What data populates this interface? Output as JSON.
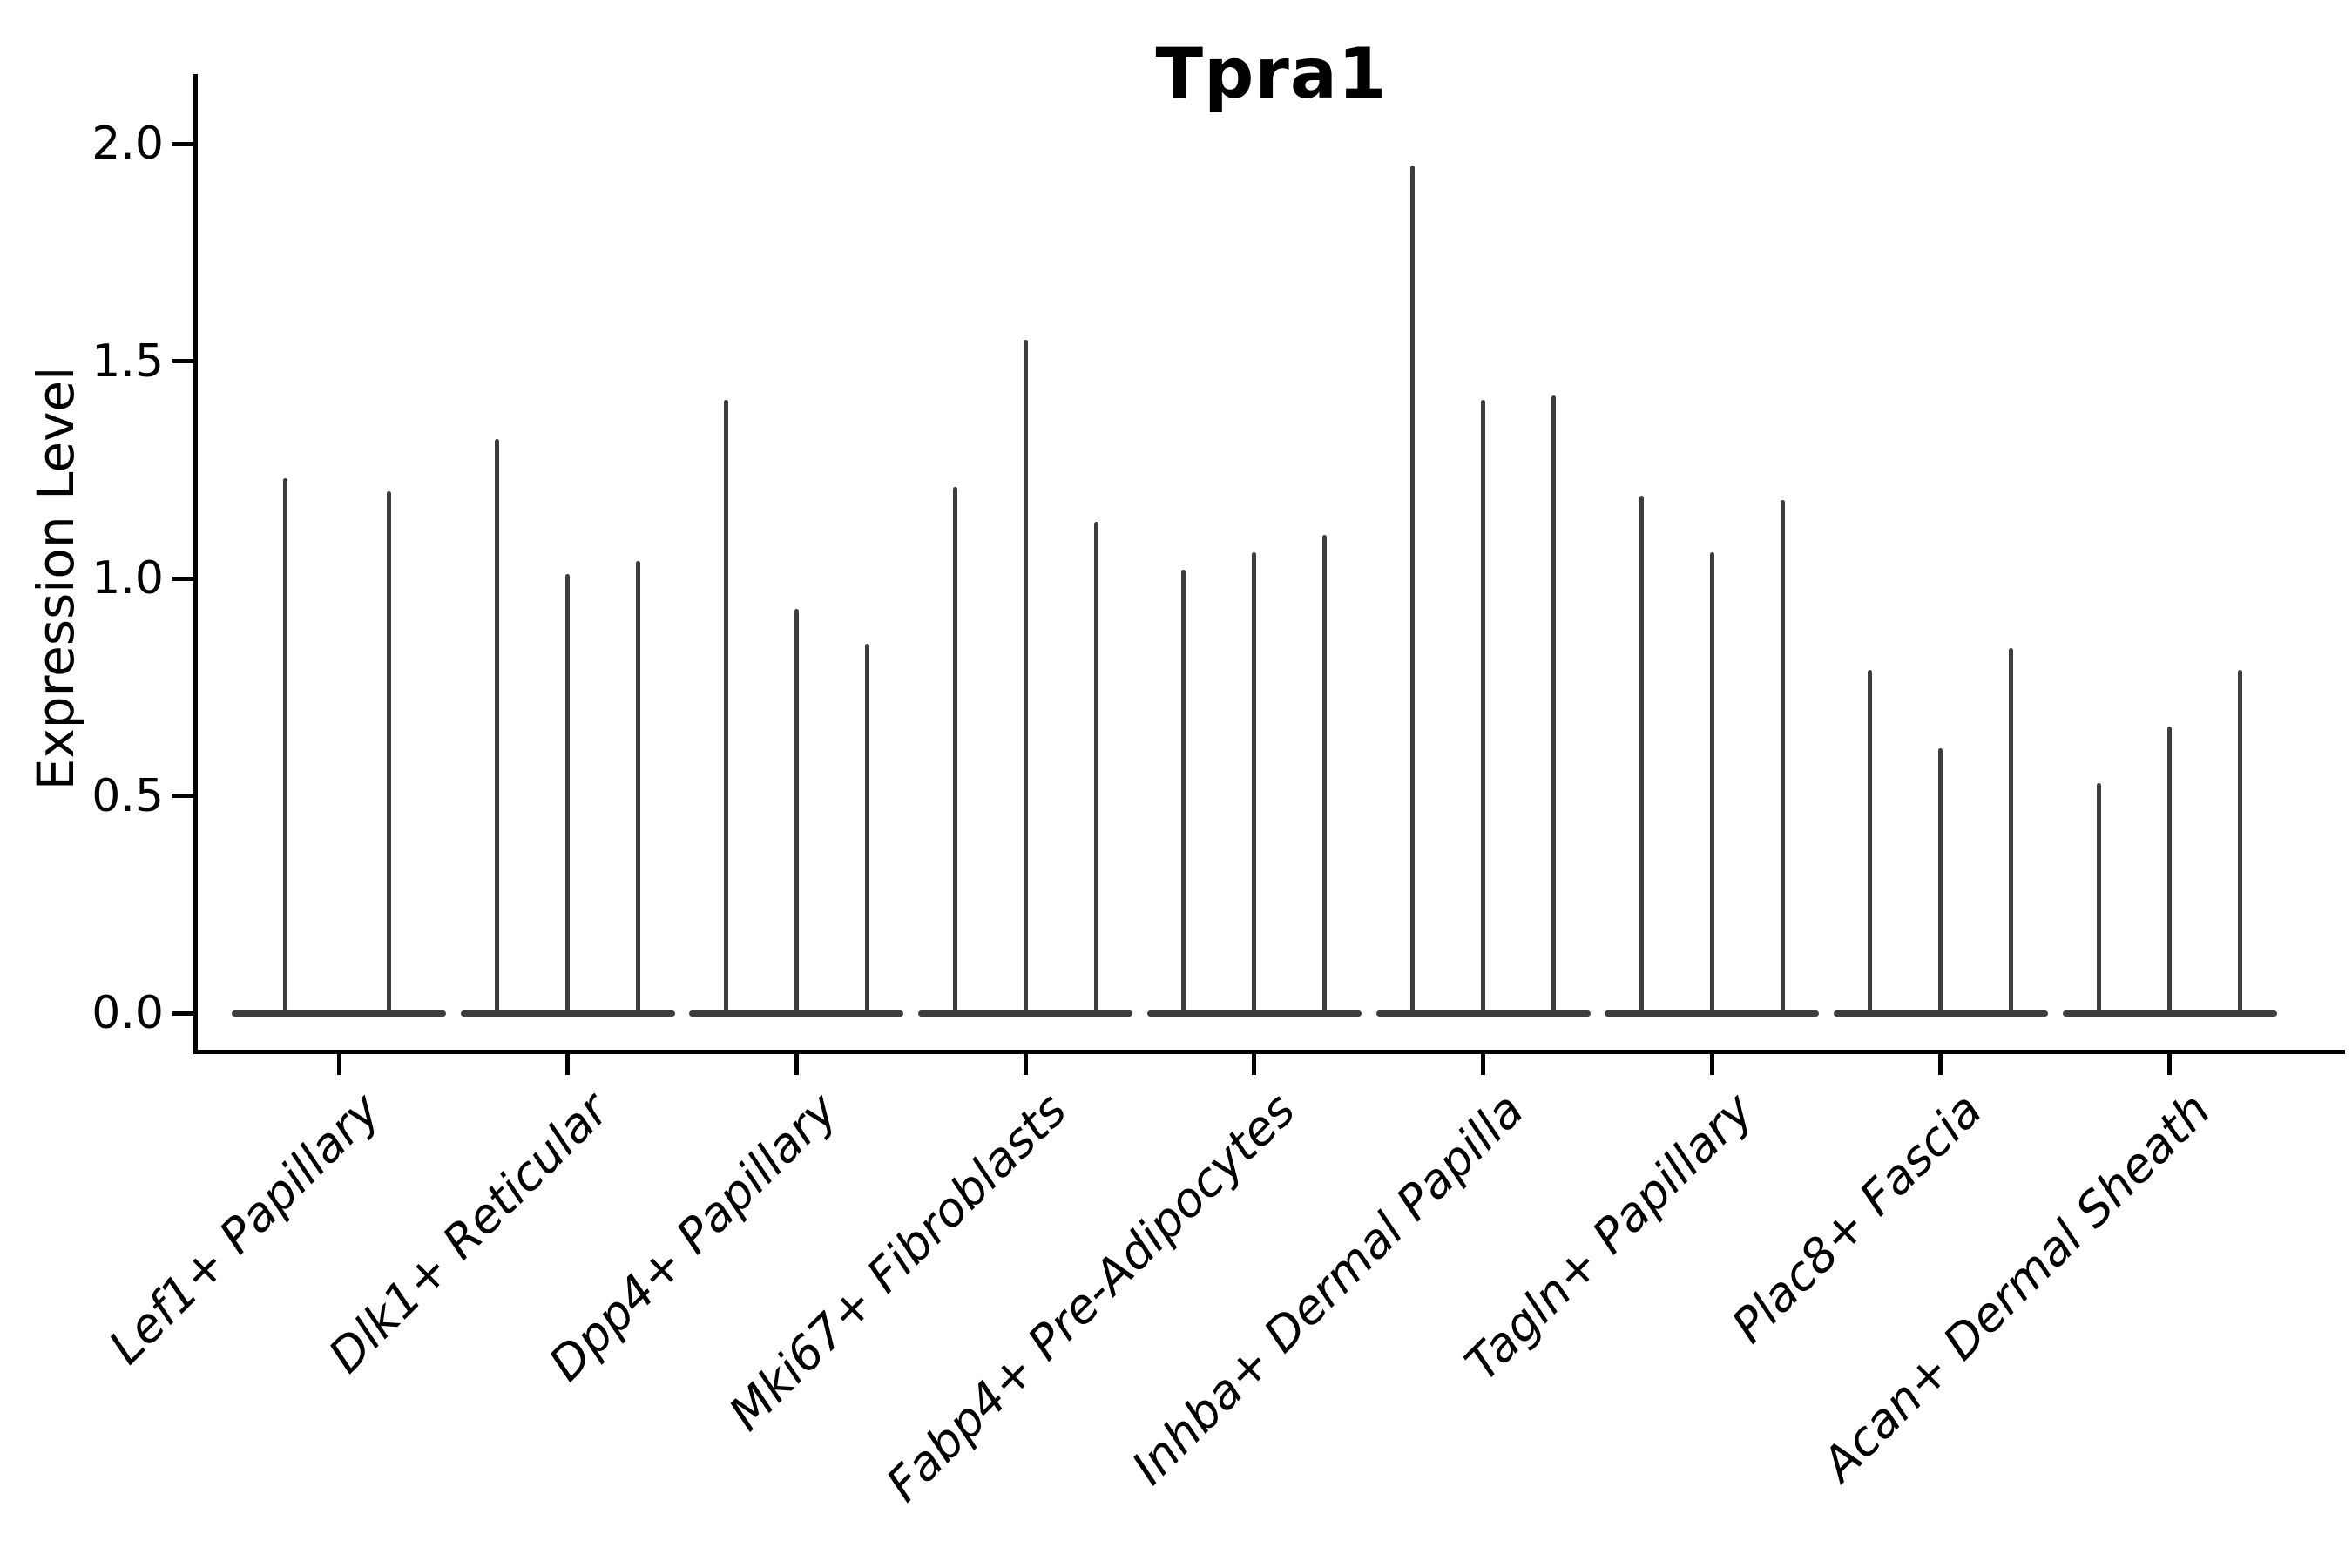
{
  "title": "Tpra1",
  "ylabel": "Expression Level",
  "chart_data": {
    "type": "violin",
    "title": "Tpra1",
    "xlabel": "",
    "ylabel": "Expression Level",
    "ylim": [
      -0.08,
      2.16
    ],
    "yticks": [
      0.0,
      0.5,
      1.0,
      1.5,
      2.0
    ],
    "ytick_labels": [
      "0.0",
      "0.5",
      "1.0",
      "1.5",
      "2.0"
    ],
    "grid": false,
    "legend": "none",
    "violin_color": "#3d3d3d",
    "axis_color": "#000000",
    "categories": [
      "Lef1+ Papillary",
      "Dlk1+ Reticular",
      "Dpp4+ Papillary",
      "Mki67+ Fibroblasts",
      "Fabp4+ Pre-Adipocytes",
      "Inhba+ Dermal Papilla",
      "Tagln+ Papillary",
      "Plac8+ Fascia",
      "Acan+ Dermal Sheath"
    ],
    "groups": [
      {
        "label": "Lef1+ Papillary",
        "violin_max_values": [
          1.23,
          1.2
        ]
      },
      {
        "label": "Dlk1+ Reticular",
        "violin_max_values": [
          1.32,
          1.01,
          1.04
        ]
      },
      {
        "label": "Dpp4+ Papillary",
        "violin_max_values": [
          1.41,
          0.93,
          0.85
        ]
      },
      {
        "label": "Mki67+ Fibroblasts",
        "violin_max_values": [
          1.21,
          1.55,
          1.13
        ]
      },
      {
        "label": "Fabp4+ Pre-Adipocytes",
        "violin_max_values": [
          1.02,
          1.06,
          1.1
        ]
      },
      {
        "label": "Inhba+ Dermal Papilla",
        "violin_max_values": [
          1.95,
          1.41,
          1.42
        ]
      },
      {
        "label": "Tagln+ Papillary",
        "violin_max_values": [
          1.19,
          1.06,
          1.18
        ]
      },
      {
        "label": "Plac8+ Fascia",
        "violin_max_values": [
          0.79,
          0.61,
          0.84
        ]
      },
      {
        "label": "Acan+ Dermal Sheath",
        "violin_max_values": [
          0.53,
          0.66,
          0.79
        ]
      }
    ]
  }
}
